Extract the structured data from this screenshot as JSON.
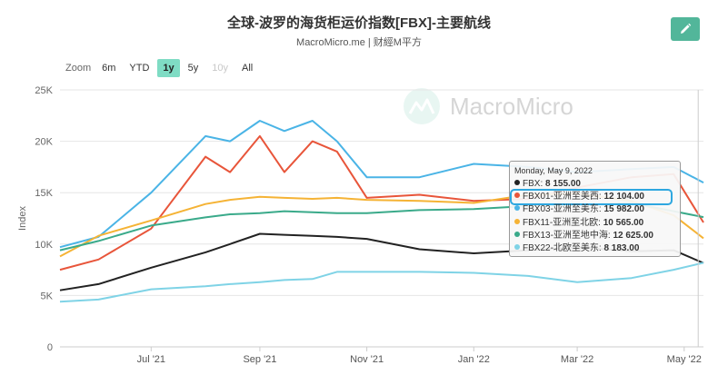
{
  "page": {
    "title": "全球-波罗的海货柜运价指数[FBX]-主要航线",
    "subtitle": "MacroMicro.me | 财經M平方",
    "watermark": "MacroMicro",
    "edit_icon": "pencil-icon"
  },
  "zoom": {
    "label": "Zoom",
    "options": [
      {
        "label": "6m",
        "state": "normal"
      },
      {
        "label": "YTD",
        "state": "normal"
      },
      {
        "label": "1y",
        "state": "active"
      },
      {
        "label": "5y",
        "state": "normal"
      },
      {
        "label": "10y",
        "state": "disabled"
      },
      {
        "label": "All",
        "state": "normal"
      }
    ]
  },
  "tooltip": {
    "date": "Monday, May 9, 2022",
    "rows": [
      {
        "label": "FBX",
        "value": "8 155.00",
        "color": "#222222",
        "highlight": false
      },
      {
        "label": "FBX01-亚洲至美西",
        "value": "12 104.00",
        "color": "#e8553a",
        "highlight": true
      },
      {
        "label": "FBX03-亚洲至美东",
        "value": "15 982.00",
        "color": "#4ab4e6",
        "highlight": false
      },
      {
        "label": "FBX11-亚洲至北欧",
        "value": "10 565.00",
        "color": "#f5b335",
        "highlight": false
      },
      {
        "label": "FBX13-亚洲至地中海",
        "value": "12 625.00",
        "color": "#3aaa8a",
        "highlight": false
      },
      {
        "label": "FBX22-北欧至美东",
        "value": "8 183.00",
        "color": "#7fd3e6",
        "highlight": false
      }
    ]
  },
  "chart_data": {
    "type": "line",
    "ylabel": "Index",
    "ylim": [
      0,
      25000
    ],
    "yticks": [
      0,
      5000,
      10000,
      15000,
      20000,
      25000
    ],
    "ytick_labels": [
      "0",
      "5K",
      "10K",
      "15K",
      "20K",
      "25K"
    ],
    "xtick_labels": [
      "Jul '21",
      "Sep '21",
      "Nov '21",
      "Jan '22",
      "Mar '22",
      "May '22"
    ],
    "xticks": [
      "2021-07-01",
      "2021-09-01",
      "2021-11-01",
      "2022-01-01",
      "2022-03-01",
      "2022-05-01"
    ],
    "x_range": [
      "2021-05-10",
      "2022-05-12"
    ],
    "grid": true,
    "tooltip_date": "2022-05-09",
    "x": [
      "2021-05-10",
      "2021-06-01",
      "2021-07-01",
      "2021-08-01",
      "2021-08-15",
      "2021-09-01",
      "2021-09-15",
      "2021-10-01",
      "2021-10-15",
      "2021-11-01",
      "2021-12-01",
      "2022-01-01",
      "2022-02-01",
      "2022-03-01",
      "2022-04-01",
      "2022-04-25",
      "2022-05-12"
    ],
    "series": [
      {
        "name": "FBX",
        "color": "#222222",
        "values": [
          5500,
          6100,
          7700,
          9200,
          10000,
          11000,
          10900,
          10800,
          10700,
          10500,
          9500,
          9100,
          9400,
          9700,
          9300,
          9400,
          8155
        ]
      },
      {
        "name": "FBX01-亚洲至美西",
        "color": "#e8553a",
        "values": [
          7500,
          8500,
          11500,
          18500,
          17000,
          20500,
          17000,
          20000,
          19000,
          14500,
          14800,
          14200,
          14400,
          15500,
          16500,
          16800,
          12104
        ]
      },
      {
        "name": "FBX03-亚洲至美东",
        "color": "#4ab4e6",
        "values": [
          9700,
          10700,
          15000,
          20500,
          20000,
          22000,
          21000,
          22000,
          20000,
          16500,
          16500,
          17800,
          17500,
          17000,
          17300,
          17500,
          15982
        ]
      },
      {
        "name": "FBX11-亚洲至北欧",
        "color": "#f5b335",
        "values": [
          8800,
          10800,
          12300,
          13900,
          14300,
          14600,
          14500,
          14400,
          14500,
          14300,
          14200,
          14000,
          14800,
          14900,
          14200,
          12800,
          10565
        ]
      },
      {
        "name": "FBX13-亚洲至地中海",
        "color": "#3aaa8a",
        "values": [
          9400,
          10300,
          11800,
          12600,
          12900,
          13000,
          13200,
          13100,
          13000,
          13000,
          13300,
          13400,
          13700,
          13800,
          14000,
          13200,
          12625
        ]
      },
      {
        "name": "FBX22-北欧至美东",
        "color": "#7fd3e6",
        "values": [
          4400,
          4600,
          5600,
          5900,
          6100,
          6300,
          6500,
          6600,
          7300,
          7300,
          7300,
          7200,
          6900,
          6300,
          6700,
          7500,
          8183
        ]
      }
    ]
  }
}
